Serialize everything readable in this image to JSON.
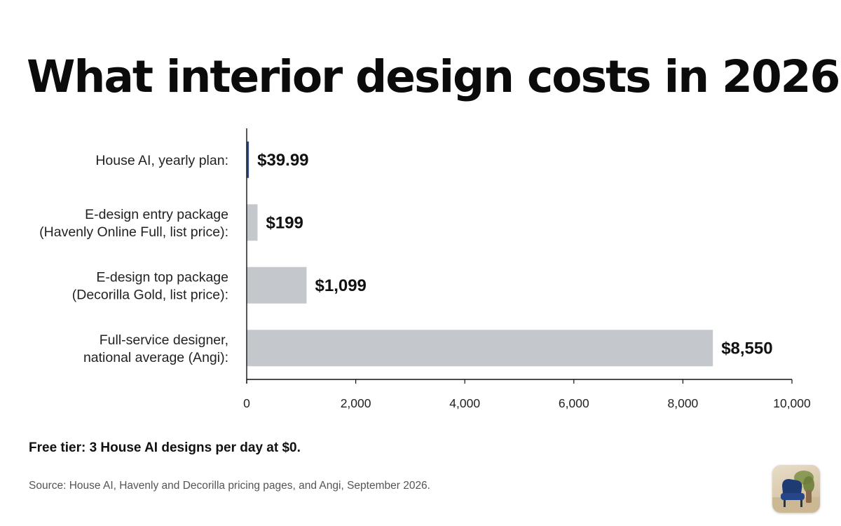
{
  "title": "What interior design costs in 2026",
  "chart_data": {
    "type": "bar",
    "orientation": "horizontal",
    "categories": [
      [
        "House AI, yearly plan:"
      ],
      [
        "E-design entry package",
        "(Havenly Online Full, list price):"
      ],
      [
        "E-design top package",
        "(Decorilla Gold, list price):"
      ],
      [
        "Full-service designer,",
        "national average (Angi):"
      ]
    ],
    "values": [
      39.99,
      199,
      1099,
      8550
    ],
    "value_labels": [
      "$39.99",
      "$199",
      "$1,099",
      "$8,550"
    ],
    "bar_colors": [
      "#2c4a86",
      "#c4c8cd",
      "#c4c8cd",
      "#c4c8cd"
    ],
    "xlim": [
      0,
      10000
    ],
    "xticks": [
      "0",
      "2,000",
      "4,000",
      "6,000",
      "8,000",
      "10,000"
    ],
    "xtick_values": [
      0,
      2000,
      4000,
      6000,
      8000,
      10000
    ],
    "grid": false,
    "legend": "none"
  },
  "footnote": "Free tier: 3 House AI designs per day at $0.",
  "source": "Source: House AI, Havenly and Decorilla pricing pages, and Angi, September 2026.",
  "logo": {
    "icon": "armchair-logo-icon",
    "colors": {
      "background": "#d8c7aa",
      "chair": "#1f3b73",
      "plant": "#6b7d3a"
    }
  }
}
